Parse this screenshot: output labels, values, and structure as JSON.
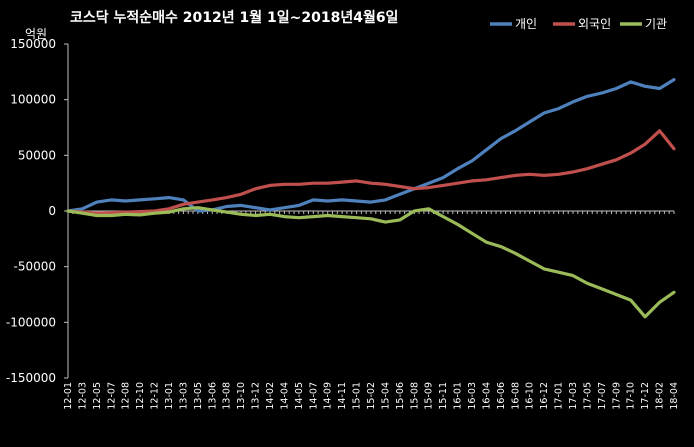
{
  "chart_data": {
    "type": "line",
    "title": "코스닥 누적순매수 2012년 1월 1일~2018년4월6일",
    "ylabel": "억원",
    "ylim": [
      -150000,
      150000
    ],
    "yticks": [
      150000,
      100000,
      50000,
      0,
      -50000,
      -100000,
      -150000
    ],
    "grid": false,
    "legend_position": "top-right",
    "x_tick_labels": [
      "12-01",
      "12-03",
      "12-05",
      "12-07",
      "12-08",
      "12-10",
      "12-12",
      "13-01",
      "13-03",
      "13-05",
      "13-06",
      "13-08",
      "13-10",
      "13-12",
      "14-02",
      "14-04",
      "14-05",
      "14-07",
      "14-09",
      "14-11",
      "15-01",
      "15-02",
      "15-04",
      "15-06",
      "15-08",
      "15-09",
      "15-11",
      "16-01",
      "16-03",
      "16-04",
      "16-06",
      "16-08",
      "16-10",
      "16-12",
      "17-01",
      "17-03",
      "17-05",
      "17-07",
      "17-09",
      "17-10",
      "17-12",
      "18-02",
      "18-04"
    ],
    "x_range": [
      0,
      42
    ],
    "series": [
      {
        "name": "개인",
        "color": "#4F81BD",
        "points": [
          [
            0,
            0
          ],
          [
            1,
            2000
          ],
          [
            2,
            8000
          ],
          [
            3,
            10000
          ],
          [
            4,
            9000
          ],
          [
            5,
            10000
          ],
          [
            6,
            11000
          ],
          [
            7,
            12000
          ],
          [
            8,
            10000
          ],
          [
            9,
            0
          ],
          [
            10,
            1000
          ],
          [
            11,
            4000
          ],
          [
            12,
            5000
          ],
          [
            13,
            3000
          ],
          [
            14,
            1000
          ],
          [
            15,
            3000
          ],
          [
            16,
            5000
          ],
          [
            17,
            10000
          ],
          [
            18,
            9000
          ],
          [
            19,
            10000
          ],
          [
            20,
            9000
          ],
          [
            21,
            8000
          ],
          [
            22,
            10000
          ],
          [
            23,
            15000
          ],
          [
            24,
            20000
          ],
          [
            25,
            25000
          ],
          [
            26,
            30000
          ],
          [
            27,
            38000
          ],
          [
            28,
            45000
          ],
          [
            29,
            55000
          ],
          [
            30,
            65000
          ],
          [
            31,
            72000
          ],
          [
            32,
            80000
          ],
          [
            33,
            88000
          ],
          [
            34,
            92000
          ],
          [
            35,
            98000
          ],
          [
            36,
            103000
          ],
          [
            37,
            106000
          ],
          [
            38,
            110000
          ],
          [
            39,
            116000
          ],
          [
            40,
            112000
          ],
          [
            41,
            110000
          ],
          [
            42,
            118000
          ]
        ]
      },
      {
        "name": "외국인",
        "color": "#C0504D",
        "points": [
          [
            0,
            0
          ],
          [
            1,
            -1000
          ],
          [
            2,
            -2000
          ],
          [
            3,
            -1500
          ],
          [
            4,
            -1000
          ],
          [
            5,
            -500
          ],
          [
            6,
            0
          ],
          [
            7,
            2000
          ],
          [
            8,
            6000
          ],
          [
            9,
            8000
          ],
          [
            10,
            10000
          ],
          [
            11,
            12000
          ],
          [
            12,
            15000
          ],
          [
            13,
            20000
          ],
          [
            14,
            23000
          ],
          [
            15,
            24000
          ],
          [
            16,
            24000
          ],
          [
            17,
            25000
          ],
          [
            18,
            25000
          ],
          [
            19,
            26000
          ],
          [
            20,
            27000
          ],
          [
            21,
            25000
          ],
          [
            22,
            24000
          ],
          [
            23,
            22000
          ],
          [
            24,
            20000
          ],
          [
            25,
            21000
          ],
          [
            26,
            23000
          ],
          [
            27,
            25000
          ],
          [
            28,
            27000
          ],
          [
            29,
            28000
          ],
          [
            30,
            30000
          ],
          [
            31,
            32000
          ],
          [
            32,
            33000
          ],
          [
            33,
            32000
          ],
          [
            34,
            33000
          ],
          [
            35,
            35000
          ],
          [
            36,
            38000
          ],
          [
            37,
            42000
          ],
          [
            38,
            46000
          ],
          [
            39,
            52000
          ],
          [
            40,
            60000
          ],
          [
            41,
            72000
          ],
          [
            42,
            56000
          ]
        ]
      },
      {
        "name": "기관",
        "color": "#9BBB59",
        "points": [
          [
            0,
            0
          ],
          [
            1,
            -2000
          ],
          [
            2,
            -4000
          ],
          [
            3,
            -4000
          ],
          [
            4,
            -3000
          ],
          [
            5,
            -3500
          ],
          [
            6,
            -2000
          ],
          [
            7,
            -1000
          ],
          [
            8,
            2000
          ],
          [
            9,
            3000
          ],
          [
            10,
            1000
          ],
          [
            11,
            -1000
          ],
          [
            12,
            -3000
          ],
          [
            13,
            -4000
          ],
          [
            14,
            -3000
          ],
          [
            15,
            -5000
          ],
          [
            16,
            -6000
          ],
          [
            17,
            -5000
          ],
          [
            18,
            -4000
          ],
          [
            19,
            -5000
          ],
          [
            20,
            -6000
          ],
          [
            21,
            -7000
          ],
          [
            22,
            -10000
          ],
          [
            23,
            -8000
          ],
          [
            24,
            0
          ],
          [
            25,
            2000
          ],
          [
            26,
            -5000
          ],
          [
            27,
            -12000
          ],
          [
            28,
            -20000
          ],
          [
            29,
            -28000
          ],
          [
            30,
            -32000
          ],
          [
            31,
            -38000
          ],
          [
            32,
            -45000
          ],
          [
            33,
            -52000
          ],
          [
            34,
            -55000
          ],
          [
            35,
            -58000
          ],
          [
            36,
            -65000
          ],
          [
            37,
            -70000
          ],
          [
            38,
            -75000
          ],
          [
            39,
            -80000
          ],
          [
            40,
            -95000
          ],
          [
            41,
            -82000
          ],
          [
            42,
            -73000
          ]
        ]
      }
    ]
  }
}
